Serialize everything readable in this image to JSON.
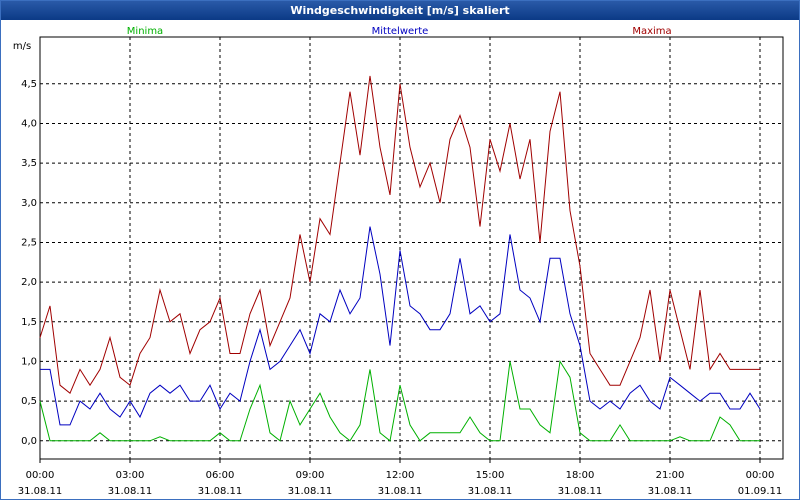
{
  "chart_data": {
    "type": "line",
    "title": "Windgeschwindigkeit [m/s] skaliert",
    "y_label": "m/s",
    "x": [
      0,
      20,
      40,
      60,
      80,
      100,
      120,
      140,
      160,
      180,
      200,
      220,
      240,
      260,
      280,
      300,
      320,
      340,
      360,
      380,
      400,
      420,
      440,
      460,
      480,
      500,
      520,
      540,
      560,
      580,
      600,
      620,
      640,
      660,
      680,
      700,
      720,
      740,
      760,
      780,
      800,
      820,
      840,
      860,
      880,
      900,
      920,
      940,
      960,
      980,
      1000,
      1020,
      1040,
      1060,
      1080,
      1100,
      1120,
      1140,
      1160,
      1180,
      1200,
      1220,
      1240,
      1260,
      1280,
      1300,
      1320,
      1340,
      1360,
      1380,
      1400,
      1420,
      1440
    ],
    "series": [
      {
        "name": "Minima",
        "color": "#00b000",
        "values": [
          0.5,
          0,
          0,
          0,
          0,
          0,
          0.1,
          0,
          0,
          0,
          0,
          0,
          0.05,
          0,
          0,
          0,
          0,
          0,
          0.1,
          0,
          0,
          0.4,
          0.7,
          0.1,
          0,
          0.5,
          0.2,
          0.4,
          0.6,
          0.3,
          0.1,
          0,
          0.2,
          0.9,
          0.1,
          0,
          0.7,
          0.2,
          0,
          0.1,
          0.1,
          0.1,
          0.1,
          0.3,
          0.1,
          0,
          0,
          1.0,
          0.4,
          0.4,
          0.2,
          0.1,
          1.0,
          0.8,
          0.1,
          0,
          0,
          0,
          0.2,
          0,
          0,
          0,
          0,
          0,
          0.05,
          0,
          0,
          0,
          0.3,
          0.2,
          0,
          0,
          0
        ]
      },
      {
        "name": "Mittelwerte",
        "color": "#0000c0",
        "values": [
          0.9,
          0.9,
          0.2,
          0.2,
          0.5,
          0.4,
          0.6,
          0.4,
          0.3,
          0.5,
          0.3,
          0.6,
          0.7,
          0.6,
          0.7,
          0.5,
          0.5,
          0.7,
          0.4,
          0.6,
          0.5,
          1.0,
          1.4,
          0.9,
          1.0,
          1.2,
          1.4,
          1.1,
          1.6,
          1.5,
          1.9,
          1.6,
          1.8,
          2.7,
          2.1,
          1.2,
          2.4,
          1.7,
          1.6,
          1.4,
          1.4,
          1.6,
          2.3,
          1.6,
          1.7,
          1.5,
          1.6,
          2.6,
          1.9,
          1.8,
          1.5,
          2.3,
          2.3,
          1.6,
          1.2,
          0.5,
          0.4,
          0.5,
          0.4,
          0.6,
          0.7,
          0.5,
          0.4,
          0.8,
          0.7,
          0.6,
          0.5,
          0.6,
          0.6,
          0.4,
          0.4,
          0.6,
          0.4
        ]
      },
      {
        "name": "Maxima",
        "color": "#a00000",
        "values": [
          1.3,
          1.7,
          0.7,
          0.6,
          0.9,
          0.7,
          0.9,
          1.3,
          0.8,
          0.7,
          1.1,
          1.3,
          1.9,
          1.5,
          1.6,
          1.1,
          1.4,
          1.5,
          1.8,
          1.1,
          1.1,
          1.6,
          1.9,
          1.2,
          1.5,
          1.8,
          2.6,
          2.0,
          2.8,
          2.6,
          3.5,
          4.4,
          3.6,
          4.6,
          3.7,
          3.1,
          4.5,
          3.7,
          3.2,
          3.5,
          3.0,
          3.8,
          4.1,
          3.7,
          2.7,
          3.8,
          3.4,
          4.0,
          3.3,
          3.8,
          2.5,
          3.9,
          4.4,
          2.9,
          2.2,
          1.1,
          0.9,
          0.7,
          0.7,
          1.0,
          1.3,
          1.9,
          1.0,
          1.9,
          1.4,
          0.9,
          1.9,
          0.9,
          1.1,
          0.9,
          0.9,
          0.9,
          0.9
        ]
      }
    ],
    "xlim": [
      0,
      1486
    ],
    "ylim": [
      -0.23,
      5.09
    ],
    "xticks": [
      {
        "value": 0,
        "label": "00:00"
      },
      {
        "value": 180,
        "label": "03:00"
      },
      {
        "value": 360,
        "label": "06:00"
      },
      {
        "value": 540,
        "label": "09:00"
      },
      {
        "value": 720,
        "label": "12:00"
      },
      {
        "value": 900,
        "label": "15:00"
      },
      {
        "value": 1080,
        "label": "18:00"
      },
      {
        "value": 1260,
        "label": "21:00"
      },
      {
        "value": 1440,
        "label": "00:00"
      }
    ],
    "xtick_dates": [
      "31.08.11",
      "31.08.11",
      "31.08.11",
      "31.08.11",
      "31.08.11",
      "31.08.11",
      "31.08.11",
      "31.08.11",
      "01.09.11"
    ],
    "yticks": [
      {
        "value": 0,
        "label": "0,0"
      },
      {
        "value": 0.5,
        "label": "0,5"
      },
      {
        "value": 1,
        "label": "1,0"
      },
      {
        "value": 1.5,
        "label": "1,5"
      },
      {
        "value": 2,
        "label": "2,0"
      },
      {
        "value": 2.5,
        "label": "2,5"
      },
      {
        "value": 3,
        "label": "3,0"
      },
      {
        "value": 3.5,
        "label": "3,5"
      },
      {
        "value": 4,
        "label": "4,0"
      },
      {
        "value": 4.5,
        "label": "4,5"
      }
    ],
    "grid": true
  }
}
